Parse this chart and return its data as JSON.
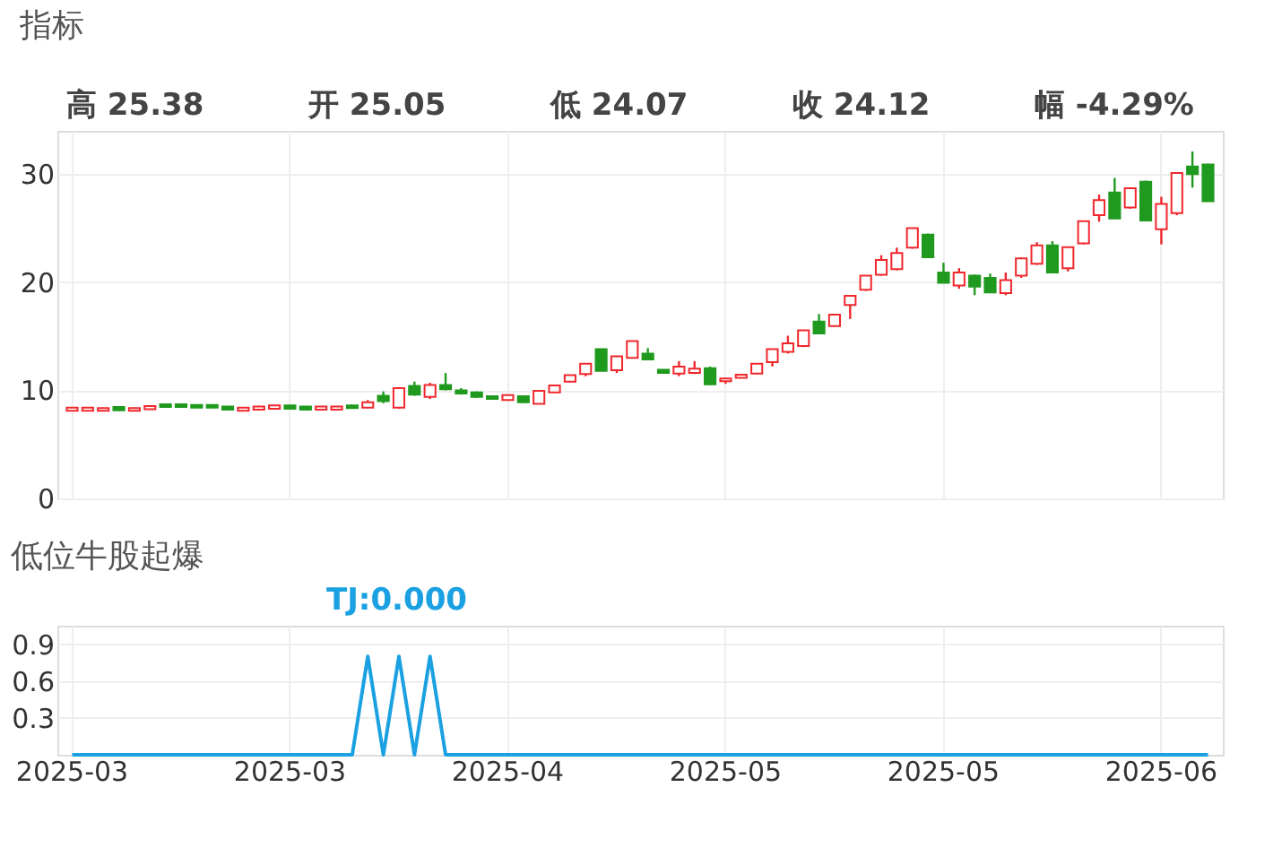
{
  "chart_data": [
    {
      "type": "candlestick",
      "title": "指标",
      "annotations": [
        "高 25.38",
        "开 25.05",
        "低 24.07",
        "收 24.12",
        "幅 -4.29%"
      ],
      "categories": [
        "2025-03",
        null,
        null,
        null,
        null,
        null,
        null,
        null,
        null,
        null,
        null,
        null,
        null,
        null,
        "2025-03",
        null,
        null,
        null,
        null,
        null,
        null,
        null,
        null,
        null,
        null,
        null,
        null,
        null,
        "2025-04",
        null,
        null,
        null,
        null,
        null,
        null,
        null,
        null,
        null,
        null,
        null,
        null,
        null,
        "2025-05",
        null,
        null,
        null,
        null,
        null,
        null,
        null,
        null,
        null,
        null,
        null,
        null,
        null,
        "2025-05",
        null,
        null,
        null,
        null,
        null,
        null,
        null,
        null,
        null,
        null,
        null,
        null,
        null,
        "2025-06",
        null,
        null,
        null
      ],
      "ohlc": [
        [
          8.1,
          8.45,
          8.05,
          8.4
        ],
        [
          8.1,
          8.4,
          8.05,
          8.4
        ],
        [
          8.1,
          8.4,
          8.05,
          8.35
        ],
        [
          8.45,
          8.5,
          8.1,
          8.15
        ],
        [
          8.1,
          8.4,
          8.05,
          8.35
        ],
        [
          8.25,
          8.6,
          8.2,
          8.55
        ],
        [
          8.7,
          8.75,
          8.4,
          8.45
        ],
        [
          8.7,
          8.75,
          8.4,
          8.45
        ],
        [
          8.65,
          8.7,
          8.35,
          8.4
        ],
        [
          8.65,
          8.7,
          8.35,
          8.4
        ],
        [
          8.5,
          8.55,
          8.2,
          8.2
        ],
        [
          8.1,
          8.45,
          8.05,
          8.4
        ],
        [
          8.2,
          8.55,
          8.15,
          8.5
        ],
        [
          8.3,
          8.65,
          8.25,
          8.6
        ],
        [
          8.6,
          8.65,
          8.3,
          8.3
        ],
        [
          8.5,
          8.55,
          8.2,
          8.2
        ],
        [
          8.2,
          8.55,
          8.15,
          8.5
        ],
        [
          8.2,
          8.55,
          8.15,
          8.5
        ],
        [
          8.6,
          8.65,
          8.3,
          8.35
        ],
        [
          8.4,
          9.1,
          8.35,
          8.9
        ],
        [
          9.5,
          9.9,
          8.8,
          9.0
        ],
        [
          8.4,
          10.3,
          8.3,
          10.2
        ],
        [
          10.4,
          10.8,
          9.5,
          9.6
        ],
        [
          9.4,
          10.7,
          9.2,
          10.5
        ],
        [
          10.5,
          11.6,
          10.0,
          10.1
        ],
        [
          10.0,
          10.2,
          9.6,
          9.7
        ],
        [
          9.8,
          9.9,
          9.3,
          9.4
        ],
        [
          9.45,
          9.5,
          9.15,
          9.2
        ],
        [
          9.1,
          9.6,
          9.05,
          9.55
        ],
        [
          9.45,
          9.5,
          8.85,
          8.9
        ],
        [
          8.75,
          10.0,
          8.7,
          9.95
        ],
        [
          9.8,
          10.5,
          9.75,
          10.45
        ],
        [
          10.8,
          11.45,
          10.75,
          11.4
        ],
        [
          11.5,
          12.5,
          11.3,
          12.45
        ],
        [
          13.8,
          13.85,
          11.75,
          11.8
        ],
        [
          11.85,
          13.2,
          11.6,
          13.15
        ],
        [
          13.0,
          14.6,
          12.95,
          14.55
        ],
        [
          13.4,
          13.9,
          12.8,
          12.85
        ],
        [
          11.9,
          11.95,
          11.6,
          11.6
        ],
        [
          11.55,
          12.7,
          11.3,
          12.2
        ],
        [
          11.6,
          12.7,
          11.5,
          12.0
        ],
        [
          12.05,
          12.2,
          10.5,
          10.55
        ],
        [
          10.85,
          11.15,
          10.6,
          11.1
        ],
        [
          11.15,
          11.5,
          11.1,
          11.45
        ],
        [
          11.55,
          12.5,
          11.5,
          12.45
        ],
        [
          12.6,
          13.8,
          12.2,
          13.8
        ],
        [
          13.55,
          15.05,
          13.4,
          14.35
        ],
        [
          14.1,
          15.6,
          14.0,
          15.55
        ],
        [
          16.35,
          17.05,
          15.2,
          15.25
        ],
        [
          15.95,
          17.05,
          15.9,
          17.0
        ],
        [
          17.9,
          18.8,
          16.6,
          18.75
        ],
        [
          19.3,
          20.65,
          19.2,
          20.6
        ],
        [
          20.7,
          22.5,
          20.6,
          22.05
        ],
        [
          21.2,
          23.2,
          21.1,
          22.7
        ],
        [
          23.2,
          25.0,
          23.1,
          25.0
        ],
        [
          24.4,
          24.5,
          22.3,
          22.3
        ],
        [
          20.9,
          21.8,
          19.9,
          19.95
        ],
        [
          19.7,
          21.3,
          19.4,
          20.9
        ],
        [
          20.6,
          20.7,
          18.8,
          19.6
        ],
        [
          20.4,
          20.8,
          19.0,
          19.05
        ],
        [
          19.0,
          20.9,
          18.8,
          20.2
        ],
        [
          20.6,
          22.3,
          20.4,
          22.2
        ],
        [
          21.7,
          23.7,
          21.6,
          23.4
        ],
        [
          23.4,
          23.8,
          20.9,
          20.9
        ],
        [
          21.3,
          23.3,
          21.0,
          23.25
        ],
        [
          23.6,
          25.7,
          23.5,
          25.65
        ],
        [
          26.2,
          28.1,
          25.6,
          27.6
        ],
        [
          28.3,
          29.65,
          25.9,
          25.9
        ],
        [
          26.9,
          28.7,
          26.8,
          28.7
        ],
        [
          29.3,
          29.4,
          25.7,
          25.7
        ],
        [
          24.9,
          27.9,
          23.5,
          27.25
        ],
        [
          26.4,
          30.1,
          26.2,
          30.1
        ],
        [
          30.7,
          32.1,
          28.75,
          30.0
        ],
        [
          30.9,
          30.95,
          27.5,
          27.5
        ]
      ],
      "colors": [
        "#f0282d",
        "#f0282d",
        "#f0282d",
        "#1f9a1f",
        "#f0282d",
        "#f0282d",
        "#1f9a1f",
        "#1f9a1f",
        "#1f9a1f",
        "#1f9a1f",
        "#1f9a1f",
        "#f0282d",
        "#f0282d",
        "#f0282d",
        "#1f9a1f",
        "#1f9a1f",
        "#f0282d",
        "#f0282d",
        "#1f9a1f",
        "#f0282d",
        "#1f9a1f",
        "#f0282d",
        "#1f9a1f",
        "#f0282d",
        "#1f9a1f",
        "#1f9a1f",
        "#1f9a1f",
        "#1f9a1f",
        "#f0282d",
        "#1f9a1f",
        "#f0282d",
        "#f0282d",
        "#f0282d",
        "#f0282d",
        "#1f9a1f",
        "#f0282d",
        "#f0282d",
        "#1f9a1f",
        "#1f9a1f",
        "#f0282d",
        "#f0282d",
        "#1f9a1f",
        "#f0282d",
        "#f0282d",
        "#f0282d",
        "#f0282d",
        "#f0282d",
        "#f0282d",
        "#1f9a1f",
        "#f0282d",
        "#f0282d",
        "#f0282d",
        "#f0282d",
        "#f0282d",
        "#f0282d",
        "#1f9a1f",
        "#1f9a1f",
        "#f0282d",
        "#1f9a1f",
        "#1f9a1f",
        "#f0282d",
        "#f0282d",
        "#f0282d",
        "#1f9a1f",
        "#f0282d",
        "#f0282d",
        "#f0282d",
        "#1f9a1f",
        "#f0282d",
        "#1f9a1f",
        "#f0282d",
        "#f0282d",
        "#1f9a1f",
        "#1f9a1f"
      ],
      "ylim": [
        0,
        34
      ],
      "yticks": [
        0,
        10,
        20,
        30
      ],
      "grid": true,
      "tick_labels": "y"
    },
    {
      "type": "line",
      "title": "低位牛股起爆",
      "annotations": [
        "TJ:0.000"
      ],
      "categories": [
        "2025-03",
        null,
        null,
        null,
        null,
        null,
        null,
        null,
        null,
        null,
        null,
        null,
        null,
        null,
        "2025-03",
        null,
        null,
        null,
        null,
        null,
        null,
        null,
        null,
        null,
        null,
        null,
        null,
        null,
        "2025-04",
        null,
        null,
        null,
        null,
        null,
        null,
        null,
        null,
        null,
        null,
        null,
        null,
        null,
        "2025-05",
        null,
        null,
        null,
        null,
        null,
        null,
        null,
        null,
        null,
        null,
        null,
        null,
        null,
        "2025-05",
        null,
        null,
        null,
        null,
        null,
        null,
        null,
        null,
        null,
        null,
        null,
        null,
        null,
        "2025-06",
        null,
        null,
        null
      ],
      "series": [
        {
          "color": "#1ba1e2",
          "values": [
            0,
            0,
            0,
            0,
            0,
            0,
            0,
            0,
            0,
            0,
            0,
            0,
            0,
            0,
            0,
            0,
            0,
            0,
            0,
            0.8,
            0,
            0.8,
            0,
            0.8,
            0,
            0,
            0,
            0,
            0,
            0,
            0,
            0,
            0,
            0,
            0,
            0,
            0,
            0,
            0,
            0,
            0,
            0,
            0,
            0,
            0,
            0,
            0,
            0,
            0,
            0,
            0,
            0,
            0,
            0,
            0,
            0,
            0,
            0,
            0,
            0,
            0,
            0,
            0,
            0,
            0,
            0,
            0,
            0,
            0,
            0,
            0,
            0,
            0,
            0
          ]
        }
      ],
      "ylim": [
        0,
        1.05
      ],
      "yticks": [
        0.3,
        0.6,
        0.9
      ],
      "grid": true
    }
  ]
}
